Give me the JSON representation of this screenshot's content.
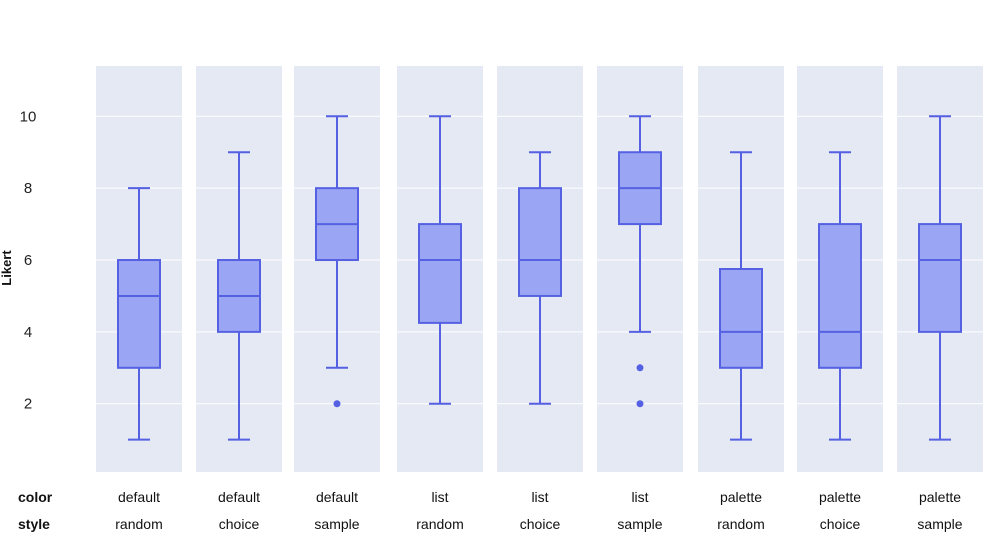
{
  "chart_data": {
    "type": "box",
    "ylabel": "Likert",
    "yticks": [
      2,
      4,
      6,
      8,
      10
    ],
    "ylim": [
      0.1,
      11.4
    ],
    "grid": true,
    "row_labels": [
      "color",
      "style"
    ],
    "groups": [
      {
        "color": "default",
        "style": "random",
        "whisker_low": 1,
        "q1": 3,
        "median": 5,
        "q3": 6,
        "whisker_high": 8,
        "outliers": []
      },
      {
        "color": "default",
        "style": "choice",
        "whisker_low": 1,
        "q1": 4,
        "median": 5,
        "q3": 6,
        "whisker_high": 9,
        "outliers": []
      },
      {
        "color": "default",
        "style": "sample",
        "whisker_low": 3,
        "q1": 6,
        "median": 7,
        "q3": 8,
        "whisker_high": 10,
        "outliers": [
          2
        ]
      },
      {
        "color": "list",
        "style": "random",
        "whisker_low": 2,
        "q1": 4.25,
        "median": 6,
        "q3": 7,
        "whisker_high": 10,
        "outliers": []
      },
      {
        "color": "list",
        "style": "choice",
        "whisker_low": 2,
        "q1": 5,
        "median": 6,
        "q3": 8,
        "whisker_high": 9,
        "outliers": []
      },
      {
        "color": "list",
        "style": "sample",
        "whisker_low": 4,
        "q1": 7,
        "median": 8,
        "q3": 9,
        "whisker_high": 10,
        "outliers": [
          3,
          2
        ]
      },
      {
        "color": "palette",
        "style": "random",
        "whisker_low": 1,
        "q1": 3,
        "median": 4,
        "q3": 5.75,
        "whisker_high": 9,
        "outliers": []
      },
      {
        "color": "palette",
        "style": "choice",
        "whisker_low": 1,
        "q1": 3,
        "median": 4,
        "q3": 7,
        "whisker_high": 9,
        "outliers": []
      },
      {
        "color": "palette",
        "style": "sample",
        "whisker_low": 1,
        "q1": 4,
        "median": 6,
        "q3": 7,
        "whisker_high": 10,
        "outliers": []
      }
    ],
    "colors": {
      "panel_bg": "#e5e9f4",
      "grid": "#ffffff",
      "box_fill": "#9aa6f3",
      "box_stroke": "#5561e2"
    }
  }
}
